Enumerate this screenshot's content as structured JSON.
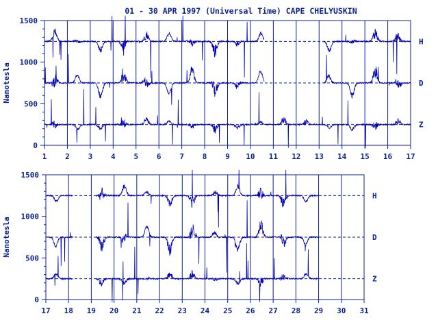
{
  "title": "01 - 30 APR 1997 (Universal Time) CAPE CHELYUSKIN",
  "colors": {
    "ink": "#0a1f8f",
    "trace": "#0000b4",
    "background": "#ffffff"
  },
  "chart_data": [
    {
      "type": "line",
      "panel": "top",
      "ylabel": "Nanotesla",
      "ylim": [
        0,
        1500
      ],
      "yticks": [
        "0",
        "500",
        "1000",
        "1500"
      ],
      "ytick_values": [
        0,
        500,
        1000,
        1500
      ],
      "xlim": [
        1,
        17
      ],
      "xticks": [
        "1",
        "2",
        "3",
        "4",
        "5",
        "6",
        "7",
        "8",
        "9",
        "10",
        "11",
        "12",
        "13",
        "14",
        "15",
        "16",
        "17"
      ],
      "xtick_values": [
        1,
        2,
        3,
        4,
        5,
        6,
        7,
        8,
        9,
        10,
        11,
        12,
        13,
        14,
        15,
        16,
        17
      ],
      "baselines": [
        1250,
        750,
        250
      ],
      "series": [
        {
          "name": "H",
          "base": 1250,
          "data_gaps": [
            [
              10.6,
              13.2
            ]
          ]
        },
        {
          "name": "D",
          "base": 750,
          "data_gaps": [
            [
              10.6,
              13.2
            ]
          ]
        },
        {
          "name": "Z",
          "base": 250,
          "data_gaps": []
        }
      ]
    },
    {
      "type": "line",
      "panel": "bottom",
      "ylabel": "Nanotesla",
      "ylim": [
        0,
        1500
      ],
      "yticks": [
        "0",
        "500",
        "1000",
        "1500"
      ],
      "ytick_values": [
        0,
        500,
        1000,
        1500
      ],
      "xlim": [
        17,
        31
      ],
      "xticks": [
        "17",
        "18",
        "19",
        "20",
        "21",
        "22",
        "23",
        "24",
        "25",
        "26",
        "27",
        "28",
        "29",
        "30",
        "31"
      ],
      "xtick_values": [
        17,
        18,
        19,
        20,
        21,
        22,
        23,
        24,
        25,
        26,
        27,
        28,
        29,
        30,
        31
      ],
      "baselines": [
        1250,
        750,
        250
      ],
      "data_end": 29,
      "series": [
        {
          "name": "H",
          "base": 1250,
          "data_gaps": [
            [
              18.2,
              19.2
            ]
          ]
        },
        {
          "name": "D",
          "base": 750,
          "data_gaps": [
            [
              18.2,
              19.2
            ]
          ]
        },
        {
          "name": "Z",
          "base": 250,
          "data_gaps": [
            [
              18.2,
              19.2
            ]
          ]
        }
      ]
    }
  ]
}
